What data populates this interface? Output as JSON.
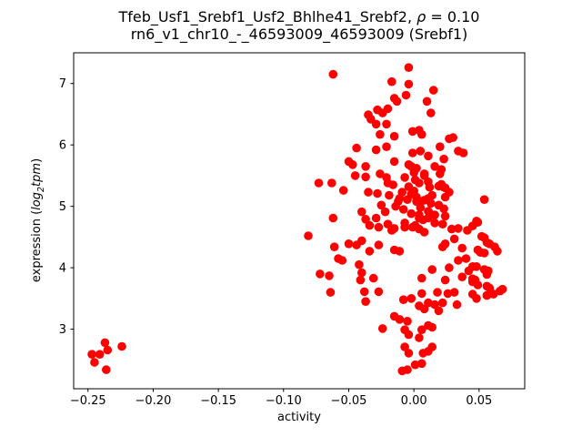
{
  "chart_data": {
    "type": "scatter",
    "title": {
      "line1_prefix": "Tfeb_Usf1_Srebf1_Usf2_Bhlhe41_Srebf2, ",
      "line1_rho": "ρ",
      "line1_eq": " = 0.10",
      "line2": "rn6_v1_chr10_-_46593009_46593009 (Srebf1)"
    },
    "xlabel": "activity",
    "ylabel": {
      "prefix": "expression (",
      "math1": "log",
      "sub": "2",
      "math2": "tpm",
      "suffix": ")"
    },
    "xlim": [
      -0.261,
      0.085
    ],
    "ylim": [
      2.03,
      7.5
    ],
    "x_ticks": [
      -0.25,
      -0.2,
      -0.15,
      -0.1,
      -0.05,
      0.0,
      0.05
    ],
    "x_tick_labels": [
      "−0.25",
      "−0.20",
      "−0.15",
      "−0.10",
      "−0.05",
      "0.00",
      "0.05"
    ],
    "y_ticks": [
      3,
      4,
      5,
      6,
      7
    ],
    "y_tick_labels": [
      "3",
      "4",
      "5",
      "6",
      "7"
    ],
    "grid": false,
    "legend": null,
    "marker_color": "#ff0000",
    "marker_radius": 4.8,
    "points": [
      [
        -0.237,
        2.78
      ],
      [
        -0.235,
        2.66
      ],
      [
        -0.224,
        2.72
      ],
      [
        -0.247,
        2.59
      ],
      [
        -0.245,
        2.46
      ],
      [
        -0.241,
        2.59
      ],
      [
        -0.236,
        2.34
      ],
      [
        -0.062,
        7.15
      ],
      [
        -0.017,
        7.03
      ],
      [
        -0.004,
        7.26
      ],
      [
        -0.004,
        6.99
      ],
      [
        -0.006,
        6.81
      ],
      [
        -0.015,
        6.76
      ],
      [
        -0.013,
        6.71
      ],
      [
        -0.02,
        6.59
      ],
      [
        -0.028,
        6.57
      ],
      [
        -0.024,
        6.52
      ],
      [
        -0.035,
        6.49
      ],
      [
        -0.033,
        6.42
      ],
      [
        -0.029,
        6.34
      ],
      [
        -0.021,
        6.34
      ],
      [
        -0.001,
        6.22
      ],
      [
        0.004,
        6.24
      ],
      [
        -0.026,
        6.17
      ],
      [
        -0.015,
        6.14
      ],
      [
        -0.044,
        5.95
      ],
      [
        -0.029,
        5.92
      ],
      [
        -0.021,
        5.97
      ],
      [
        -0.001,
        5.87
      ],
      [
        -0.05,
        5.73
      ],
      [
        -0.047,
        5.68
      ],
      [
        -0.037,
        5.65
      ],
      [
        -0.015,
        5.73
      ],
      [
        -0.004,
        5.68
      ],
      [
        0.015,
        6.89
      ],
      [
        0.01,
        6.71
      ],
      [
        0.013,
        6.52
      ],
      [
        0.006,
        6.17
      ],
      [
        0.005,
        5.9
      ],
      [
        0.02,
        5.97
      ],
      [
        0.027,
        6.1
      ],
      [
        0.03,
        6.12
      ],
      [
        0.034,
        5.9
      ],
      [
        0.038,
        5.87
      ],
      [
        0.023,
        5.77
      ],
      [
        0.011,
        5.82
      ],
      [
        -0.073,
        5.38
      ],
      [
        -0.063,
        5.38
      ],
      [
        -0.045,
        5.5
      ],
      [
        -0.037,
        5.48
      ],
      [
        -0.026,
        5.53
      ],
      [
        -0.02,
        5.38
      ],
      [
        -0.054,
        5.26
      ],
      [
        -0.035,
        5.23
      ],
      [
        -0.028,
        5.21
      ],
      [
        -0.011,
        5.13
      ],
      [
        -0.005,
        5.11
      ],
      [
        0.002,
        5.08
      ],
      [
        -0.062,
        4.81
      ],
      [
        -0.04,
        4.91
      ],
      [
        -0.037,
        4.79
      ],
      [
        -0.029,
        4.81
      ],
      [
        -0.027,
        4.66
      ],
      [
        -0.034,
        4.69
      ],
      [
        -0.02,
        4.71
      ],
      [
        -0.015,
        4.64
      ],
      [
        -0.007,
        4.66
      ],
      [
        0.001,
        4.69
      ],
      [
        -0.081,
        4.52
      ],
      [
        -0.061,
        4.34
      ],
      [
        -0.05,
        4.39
      ],
      [
        -0.044,
        4.37
      ],
      [
        -0.04,
        4.44
      ],
      [
        -0.034,
        4.27
      ],
      [
        -0.027,
        4.37
      ],
      [
        -0.015,
        4.29
      ],
      [
        -0.011,
        4.27
      ],
      [
        -0.058,
        4.15
      ],
      [
        -0.055,
        4.12
      ],
      [
        -0.042,
        4.05
      ],
      [
        -0.04,
        3.92
      ],
      [
        -0.072,
        3.9
      ],
      [
        -0.065,
        3.87
      ],
      [
        -0.041,
        3.8
      ],
      [
        -0.031,
        3.83
      ],
      [
        0.008,
        5.53
      ],
      [
        0.02,
        5.53
      ],
      [
        0.004,
        5.38
      ],
      [
        0.012,
        5.31
      ],
      [
        0.021,
        5.36
      ],
      [
        0.023,
        5.31
      ],
      [
        0.011,
        5.13
      ],
      [
        0.004,
        5.08
      ],
      [
        0.054,
        5.11
      ],
      [
        0.023,
        4.96
      ],
      [
        0.024,
        4.84
      ],
      [
        0.012,
        4.89
      ],
      [
        0.004,
        4.81
      ],
      [
        0.034,
        4.64
      ],
      [
        0.049,
        4.74
      ],
      [
        0.041,
        4.61
      ],
      [
        0.031,
        4.47
      ],
      [
        0.024,
        4.39
      ],
      [
        0.022,
        4.34
      ],
      [
        0.037,
        4.32
      ],
      [
        0.054,
        4.49
      ],
      [
        0.058,
        4.39
      ],
      [
        0.064,
        4.27
      ],
      [
        0.051,
        4.25
      ],
      [
        0.034,
        4.12
      ],
      [
        0.04,
        4.15
      ],
      [
        0.014,
        3.97
      ],
      [
        0.027,
        4.0
      ],
      [
        0.042,
        3.95
      ],
      [
        0.048,
        4.02
      ],
      [
        0.054,
        3.97
      ],
      [
        0.057,
        3.95
      ],
      [
        0.006,
        3.83
      ],
      [
        0.024,
        3.8
      ],
      [
        0.037,
        3.85
      ],
      [
        0.047,
        3.8
      ],
      [
        0.048,
        4.76
      ],
      [
        0.045,
        4.68
      ],
      [
        0.052,
        4.51
      ],
      [
        0.056,
        4.41
      ],
      [
        0.049,
        4.29
      ],
      [
        0.054,
        4.24
      ],
      [
        0.062,
        4.34
      ],
      [
        0.045,
        4.02
      ],
      [
        0.056,
        3.89
      ],
      [
        0.045,
        3.82
      ],
      [
        0.058,
        3.67
      ],
      [
        0.068,
        3.65
      ],
      [
        0.061,
        3.57
      ],
      [
        0.045,
        3.77
      ],
      [
        0.056,
        3.7
      ],
      [
        0.049,
        3.72
      ],
      [
        0.045,
        3.57
      ],
      [
        0.056,
        3.55
      ],
      [
        -0.064,
        3.6
      ],
      [
        -0.038,
        3.61
      ],
      [
        -0.027,
        3.61
      ],
      [
        -0.037,
        3.45
      ],
      [
        -0.008,
        3.48
      ],
      [
        -0.002,
        3.5
      ],
      [
        -0.015,
        3.21
      ],
      [
        -0.011,
        3.16
      ],
      [
        -0.005,
        3.13
      ],
      [
        -0.024,
        3.01
      ],
      [
        -0.007,
        2.99
      ],
      [
        -0.004,
        2.91
      ],
      [
        -0.007,
        2.71
      ],
      [
        -0.004,
        2.61
      ],
      [
        -0.009,
        2.32
      ],
      [
        -0.005,
        2.34
      ],
      [
        0.001,
        2.42
      ],
      [
        0.006,
        3.58
      ],
      [
        0.018,
        3.6
      ],
      [
        0.026,
        3.58
      ],
      [
        0.031,
        3.6
      ],
      [
        0.048,
        3.5
      ],
      [
        0.056,
        3.55
      ],
      [
        0.059,
        3.6
      ],
      [
        0.066,
        3.62
      ],
      [
        0.011,
        3.43
      ],
      [
        0.016,
        3.4
      ],
      [
        0.004,
        3.38
      ],
      [
        0.022,
        3.43
      ],
      [
        0.033,
        3.4
      ],
      [
        0.008,
        3.33
      ],
      [
        0.019,
        3.3
      ],
      [
        0.011,
        3.06
      ],
      [
        0.014,
        3.03
      ],
      [
        0.006,
        2.99
      ],
      [
        0.004,
        2.86
      ],
      [
        0.014,
        2.71
      ],
      [
        0.007,
        2.61
      ],
      [
        0.011,
        2.64
      ],
      [
        0.006,
        2.44
      ],
      [
        -0.002,
        5.65
      ],
      [
        0.002,
        5.62
      ],
      [
        0.016,
        5.65
      ],
      [
        0.021,
        5.6
      ],
      [
        -0.021,
        5.47
      ],
      [
        -0.007,
        5.47
      ],
      [
        0.001,
        5.43
      ],
      [
        0.011,
        5.4
      ],
      [
        0.019,
        5.33
      ],
      [
        0.024,
        5.3
      ],
      [
        0.027,
        5.23
      ],
      [
        -0.009,
        5.23
      ],
      [
        0.0,
        5.25
      ],
      [
        0.002,
        5.15
      ],
      [
        0.008,
        5.1
      ],
      [
        0.013,
        5.05
      ],
      [
        -0.014,
        5.0
      ],
      [
        -0.022,
        4.91
      ],
      [
        -0.002,
        4.88
      ],
      [
        0.004,
        4.86
      ],
      [
        0.007,
        4.78
      ],
      [
        0.011,
        4.81
      ],
      [
        0.016,
        4.73
      ],
      [
        0.022,
        4.71
      ],
      [
        0.029,
        4.63
      ],
      [
        -0.007,
        4.73
      ],
      [
        -0.001,
        4.66
      ],
      [
        0.004,
        4.63
      ],
      [
        0.008,
        4.58
      ],
      [
        -0.017,
        4.61
      ],
      [
        -0.016,
        5.35
      ],
      [
        -0.004,
        5.32
      ],
      [
        0.014,
        5.18
      ],
      [
        -0.012,
        5.08
      ],
      [
        0.005,
        4.98
      ],
      [
        0.019,
        5.02
      ],
      [
        -0.008,
        4.95
      ],
      [
        0.011,
        4.92
      ],
      [
        -0.019,
        5.18
      ],
      [
        0.0,
        5.55
      ],
      [
        0.008,
        5.5
      ],
      [
        -0.025,
        5.02
      ],
      [
        0.016,
        4.86
      ],
      [
        -0.002,
        5.2
      ],
      [
        0.024,
        5.15
      ]
    ],
    "axis_color": "#000000",
    "background_color": "#ffffff"
  }
}
